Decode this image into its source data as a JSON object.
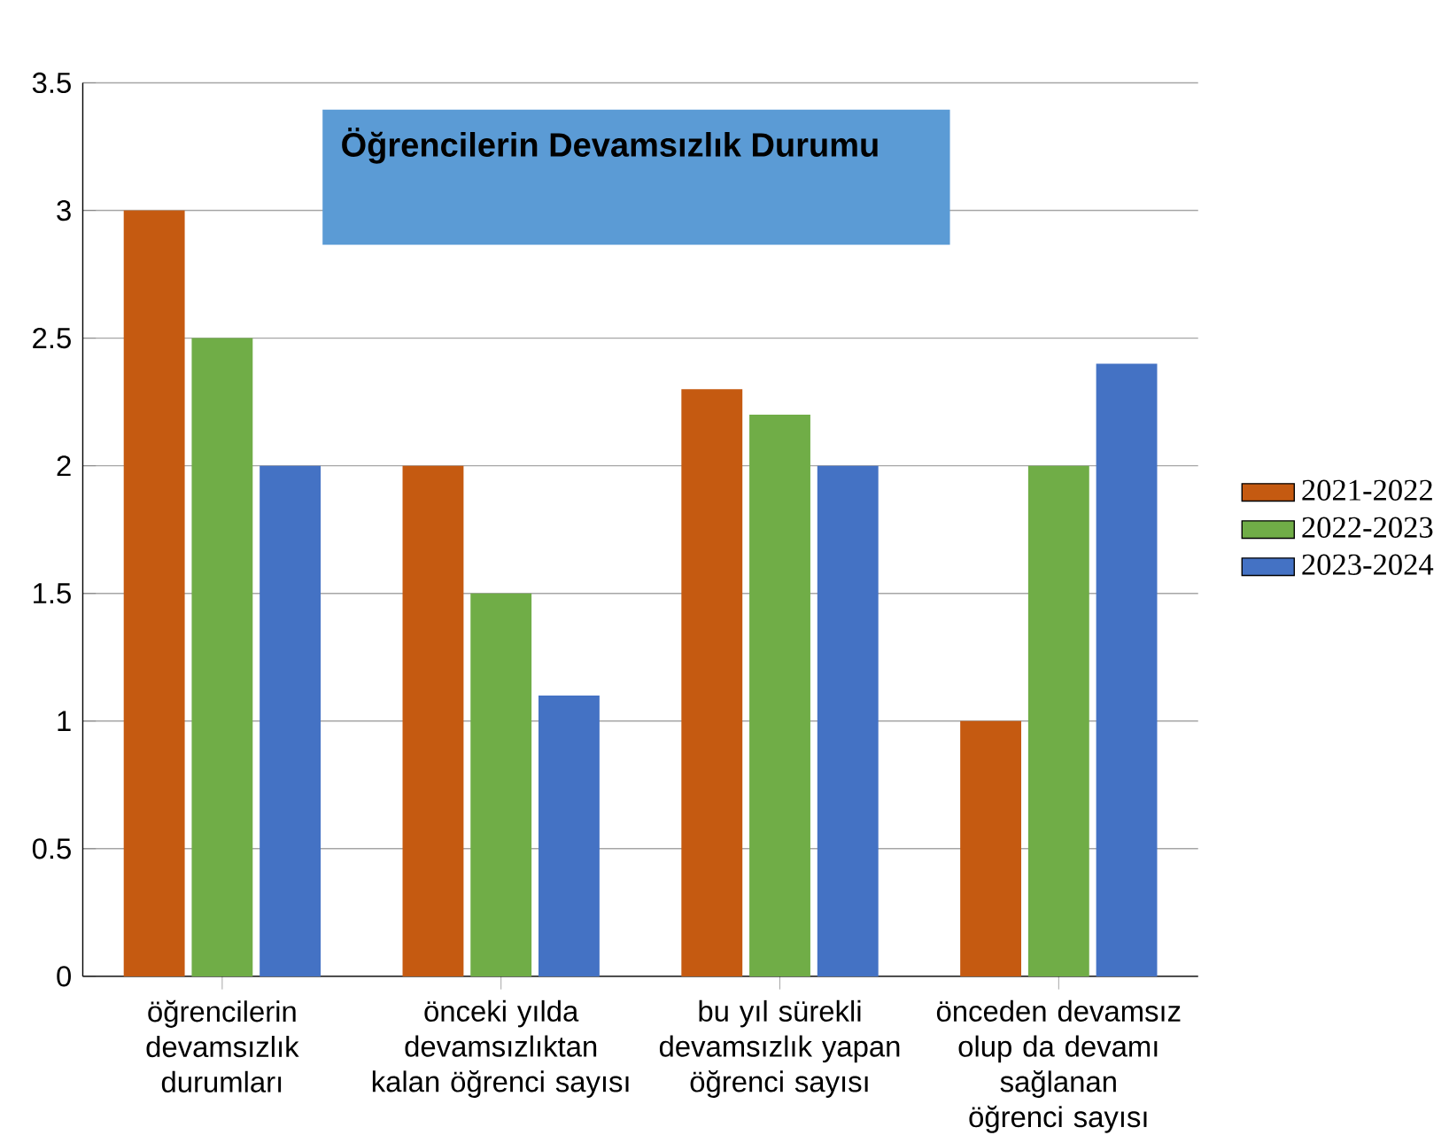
{
  "chart_data": {
    "type": "bar",
    "title": "Öğrencilerin Devamsızlık Durumu",
    "categories": [
      "öğrencilerin devamsızlık durumları",
      "önceki yılda devamsızlıktan kalan öğrenci sayısı",
      "bu yıl sürekli devamsızlık yapan öğrenci sayısı",
      "önceden devamsız olup da devamı sağlanan öğrenci sayısı"
    ],
    "series": [
      {
        "name": "2021-2022",
        "color": "#c55a11",
        "values": [
          3,
          2,
          2.3,
          1
        ]
      },
      {
        "name": "2022-2023",
        "color": "#70ad47",
        "values": [
          2.5,
          1.5,
          2.2,
          2
        ]
      },
      {
        "name": "2023-2024",
        "color": "#4472c4",
        "values": [
          2,
          1.1,
          2,
          2.4
        ]
      }
    ],
    "ylim": [
      0,
      3.5
    ],
    "yticks": [
      0,
      0.5,
      1,
      1.5,
      2,
      2.5,
      3,
      3.5
    ],
    "grid": "y",
    "legend": "right"
  }
}
